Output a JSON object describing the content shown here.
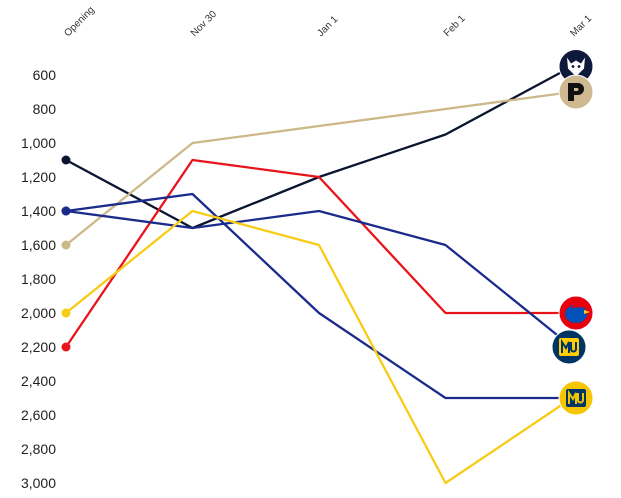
{
  "chart_data": {
    "type": "line",
    "x": [
      "Opening",
      "Nov 30",
      "Jan 1",
      "Feb 1",
      "Mar 1"
    ],
    "ylim": [
      500,
      3000
    ],
    "y_inverted": true,
    "yticks": [
      "600",
      "800",
      "1,000",
      "1,200",
      "1,400",
      "1,600",
      "1,800",
      "2,000",
      "2,200",
      "2,400",
      "2,600",
      "2,800",
      "3,000"
    ],
    "ytick_values": [
      600,
      800,
      1000,
      1200,
      1400,
      1600,
      1800,
      2000,
      2200,
      2400,
      2600,
      2800,
      3000
    ],
    "grid": false,
    "series": [
      {
        "values": [
          1100,
          1500,
          1200,
          950,
          550
        ],
        "color": "#0b1530",
        "logo": "uconn-husky",
        "logo_bg": "#0e1a3b",
        "logo_fg": "#ffffff"
      },
      {
        "values": [
          1600,
          1000,
          900,
          800,
          700
        ],
        "color": "#cdb889",
        "logo": "purdue-p",
        "logo_bg": "#cfb991",
        "logo_fg": "#111111"
      },
      {
        "values": [
          2200,
          1100,
          1200,
          2000,
          2000
        ],
        "color": "#e8141c",
        "logo": "kansas-jayhawk",
        "logo_bg": "#e8000d",
        "logo_fg": "#0051ba"
      },
      {
        "values": [
          1400,
          1300,
          2000,
          2500,
          2500
        ],
        "color": "#1a2b8c",
        "logo": "kentucky-uk",
        "logo_bg": "#0033a0",
        "logo_fg": "#ffffff"
      },
      {
        "values": [
          1400,
          1500,
          1400,
          1600,
          2200
        ],
        "color": "#1a2b8c",
        "logo": "marquette-mu",
        "logo_bg": "#003366",
        "logo_fg": "#ffcc00"
      },
      {
        "values": [
          2000,
          1400,
          1600,
          3000,
          2500
        ],
        "color": "#f7cc17",
        "logo": "marquette-mu",
        "logo_bg": "#f5c600",
        "logo_fg": "#003366"
      }
    ]
  }
}
